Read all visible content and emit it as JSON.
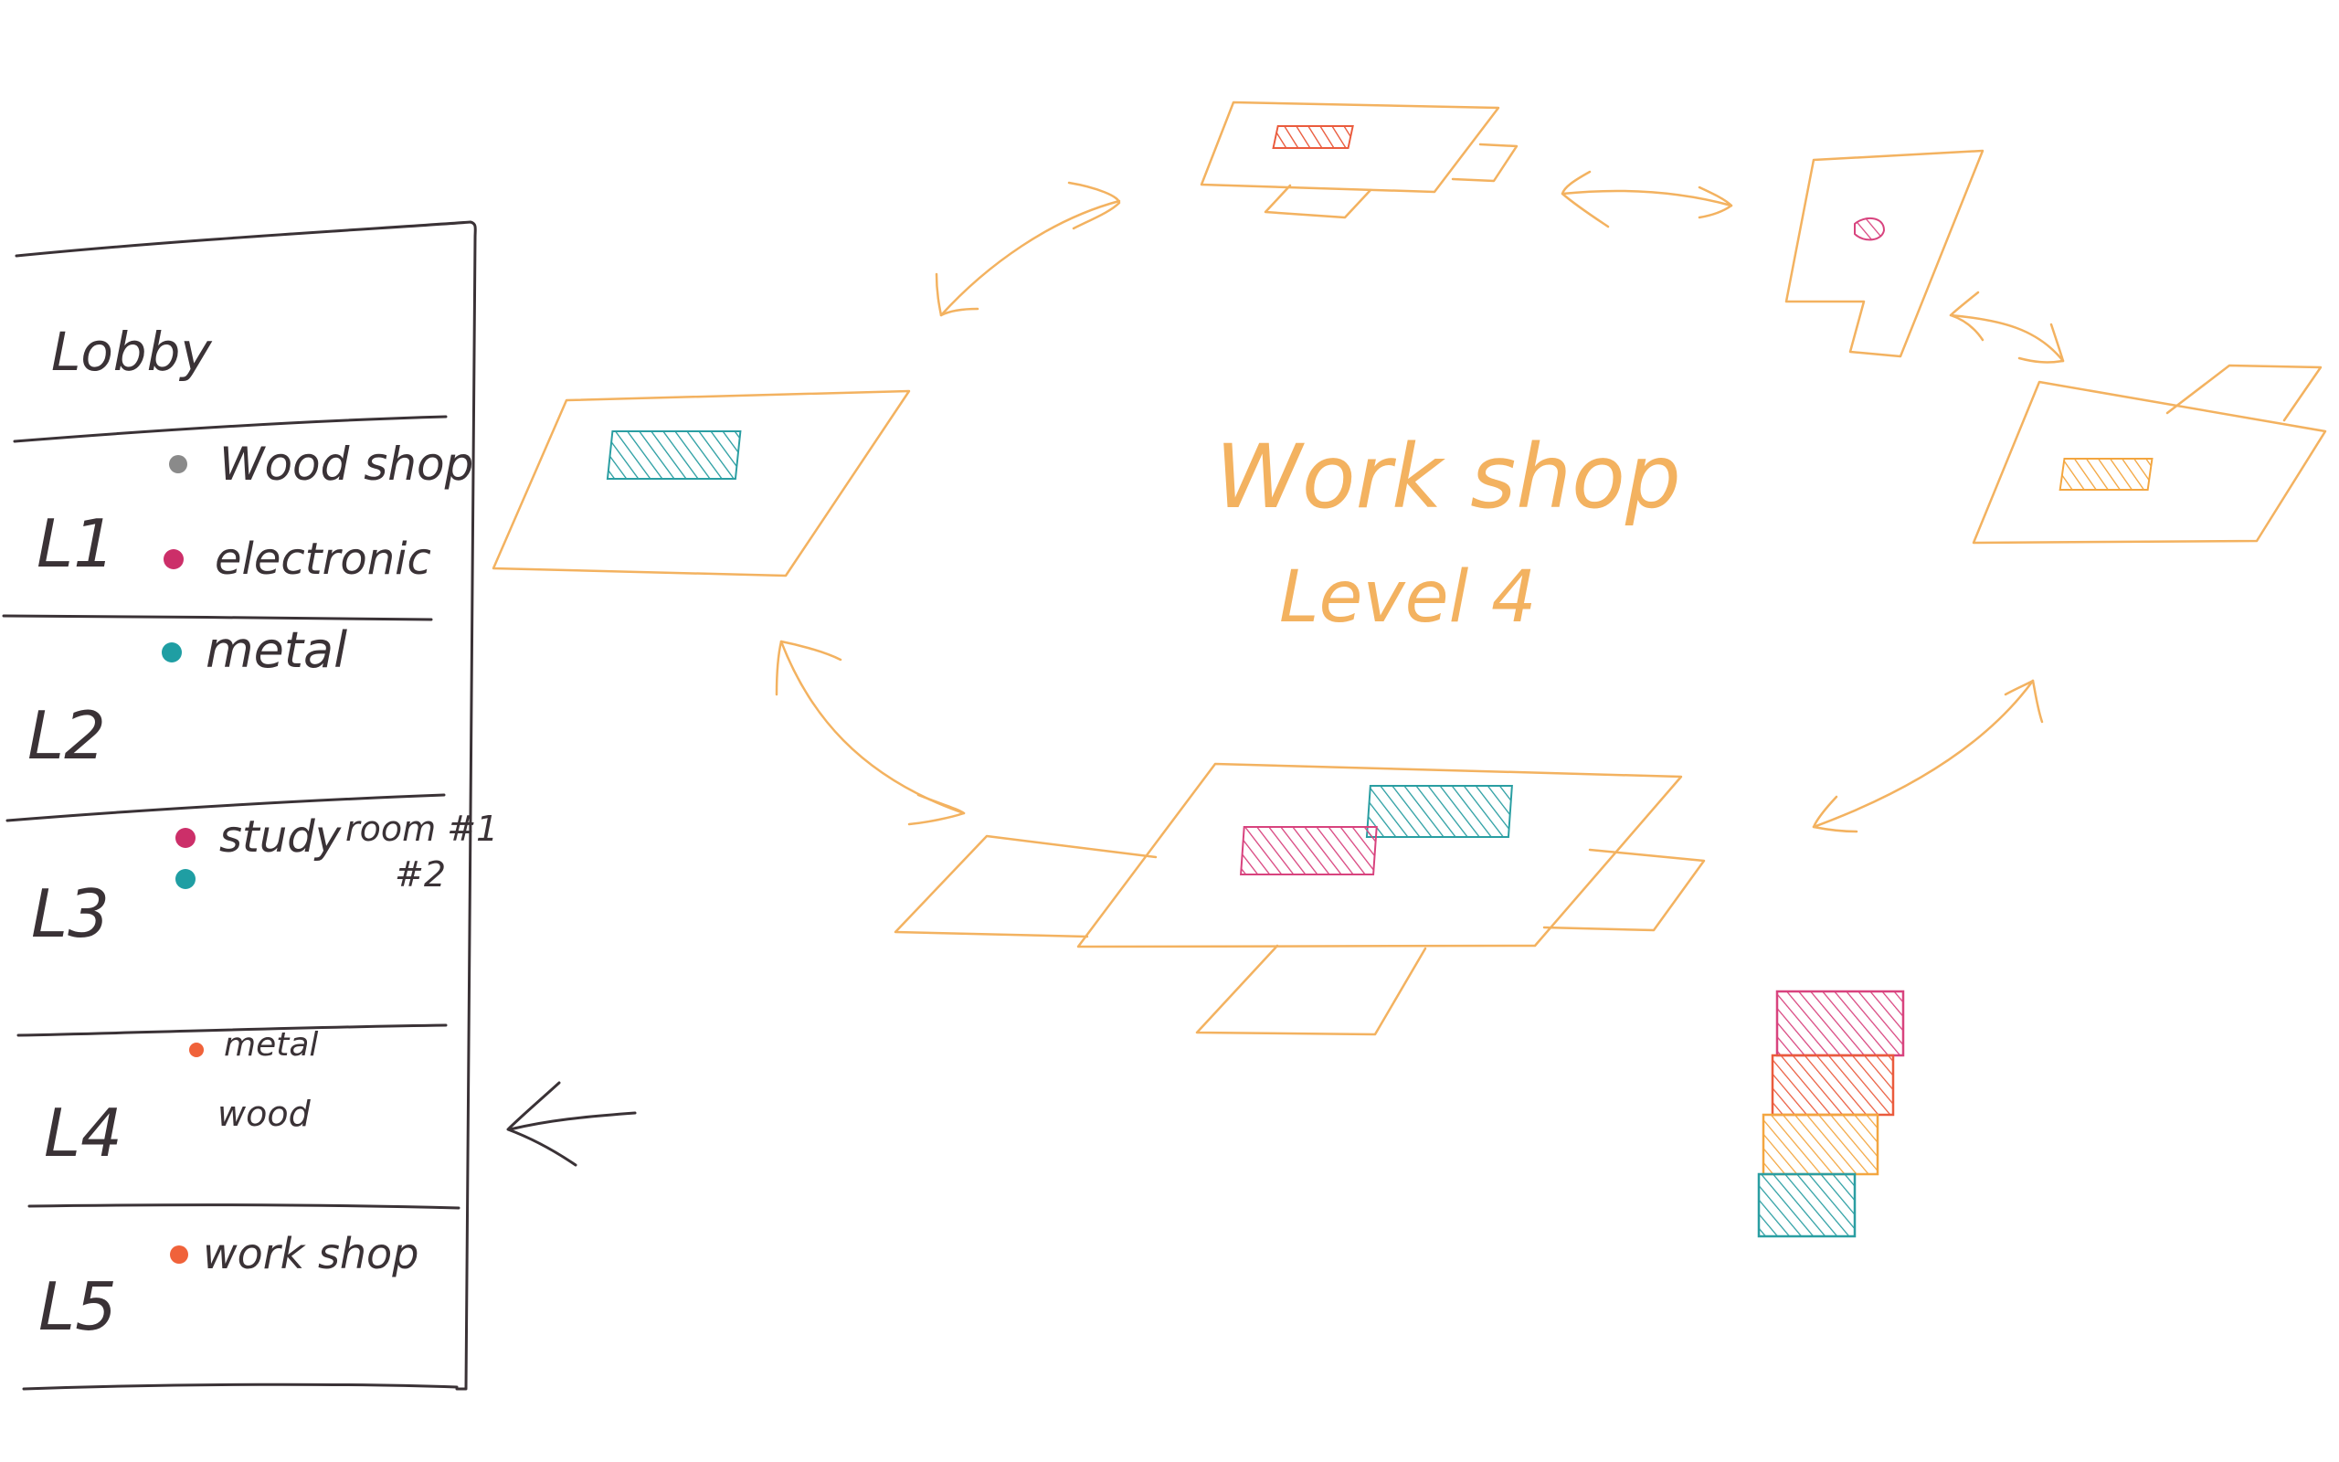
{
  "colors": {
    "ink": "#3a3236",
    "sketch_orange": "#f3b260",
    "wood": "#8a8a8a",
    "electronic": "#cc2f69",
    "metal": "#1f9ea3",
    "study_room_1": "#cc2f69",
    "study_room_2": "#1f9ea3",
    "l4_metal": "#f0623a",
    "workshop": "#f0623a",
    "pink": "#d8437e",
    "red_orange": "#ea5b3d",
    "amber": "#f3a640",
    "teal": "#2a9ea2"
  },
  "building": {
    "floors": [
      {
        "id": "lobby",
        "label": "Lobby",
        "rooms": []
      },
      {
        "id": "l1",
        "label": "L1",
        "rooms": [
          {
            "label": "Wood shop",
            "dot": "wood"
          },
          {
            "label": "electronic",
            "dot": "electronic"
          }
        ]
      },
      {
        "id": "l2",
        "label": "L2",
        "rooms": [
          {
            "label": "metal",
            "dot": "metal"
          }
        ]
      },
      {
        "id": "l3",
        "label": "L3",
        "rooms": [
          {
            "label": "study",
            "dot": "study_room_1"
          },
          {
            "label": "",
            "dot": "study_room_2"
          }
        ],
        "side_notes": [
          "room #1",
          "#2"
        ]
      },
      {
        "id": "l4",
        "label": "L4",
        "rooms": [
          {
            "label": "metal",
            "dot": "l4_metal"
          },
          {
            "label": "wood",
            "dot": null
          }
        ]
      },
      {
        "id": "l5",
        "label": "L5",
        "rooms": [
          {
            "label": "work shop",
            "dot": "workshop"
          }
        ]
      }
    ]
  },
  "workshop": {
    "title": "Work shop",
    "subtitle": "Level 4"
  },
  "legend_swatches": [
    "pink",
    "red_orange",
    "amber",
    "teal"
  ]
}
